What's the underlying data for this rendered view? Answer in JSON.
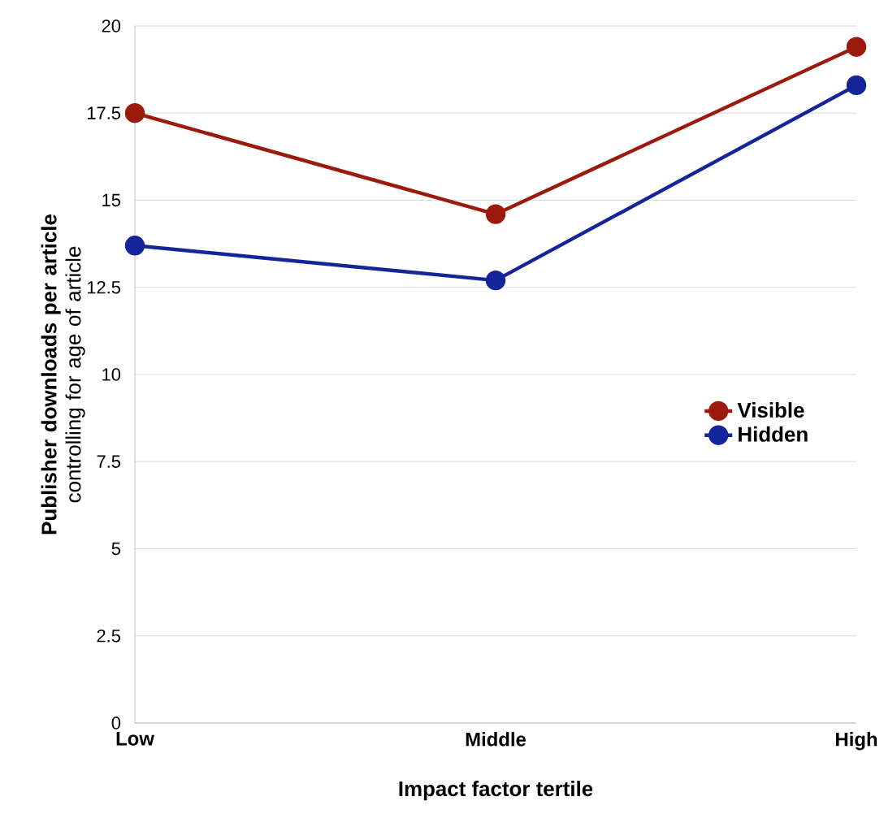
{
  "chart_data": {
    "type": "line",
    "xlabel": "Impact factor tertile",
    "ylabel": "**Publisher downloads per article** controlling for age of article",
    "categories": [
      "Low",
      "Middle",
      "High"
    ],
    "series": [
      {
        "name": "Visible",
        "color": "#9c1a0c",
        "values": [
          17.5,
          14.6,
          19.4
        ]
      },
      {
        "name": "Hidden",
        "color": "#14259a",
        "values": [
          13.7,
          12.7,
          18.3
        ]
      }
    ],
    "ylim": [
      0,
      20
    ],
    "yticks": [
      0,
      2.5,
      5,
      7.5,
      10,
      12.5,
      15,
      17.5,
      20
    ],
    "grid": "y",
    "legend": "right",
    "marker": "circle",
    "line_style": "solid"
  }
}
